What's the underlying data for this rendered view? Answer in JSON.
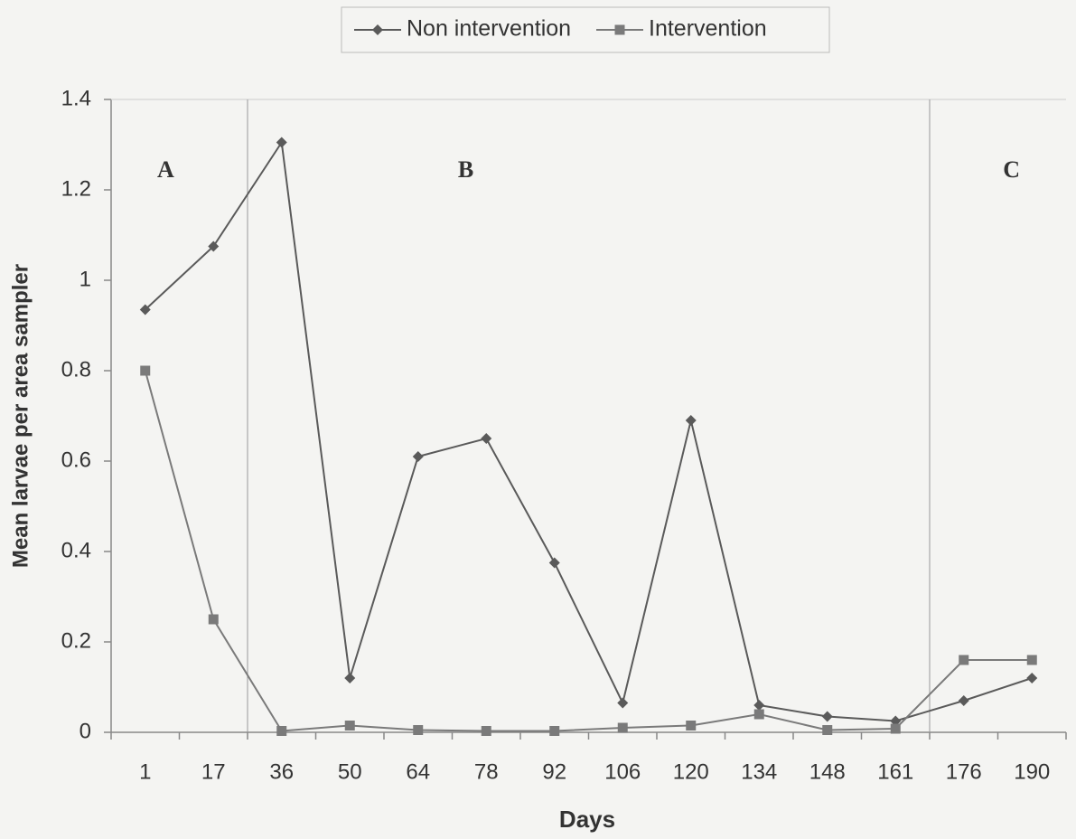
{
  "chart_data": {
    "type": "line",
    "x_label": "Days",
    "y_label": "Mean larvae per area sampler",
    "categories": [
      1,
      17,
      36,
      50,
      64,
      78,
      92,
      106,
      120,
      134,
      148,
      161,
      176,
      190
    ],
    "series": [
      {
        "name": "Non intervention",
        "color": "#5a5a5a",
        "marker": "diamond",
        "values": [
          0.935,
          1.075,
          1.305,
          0.12,
          0.61,
          0.65,
          0.375,
          0.065,
          0.69,
          0.06,
          0.035,
          0.025,
          0.07,
          0.12
        ]
      },
      {
        "name": "Intervention",
        "color": "#7a7a7a",
        "marker": "square",
        "values": [
          0.8,
          0.25,
          0.003,
          0.015,
          0.005,
          0.003,
          0.003,
          0.01,
          0.015,
          0.04,
          0.005,
          0.008,
          0.16,
          0.16
        ]
      }
    ],
    "annotations": [
      "A",
      "B",
      "C"
    ],
    "ylim": [
      0,
      1.4
    ],
    "yticks": [
      0,
      0.2,
      0.4,
      0.6,
      0.8,
      1,
      1.2,
      1.4
    ]
  }
}
